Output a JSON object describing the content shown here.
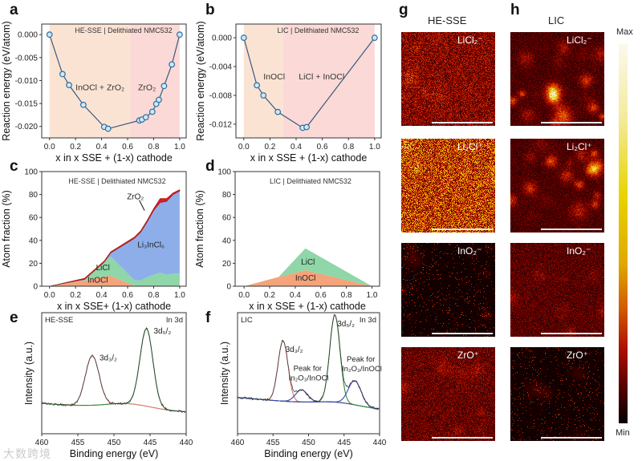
{
  "panel_letters": [
    "a",
    "b",
    "c",
    "d",
    "e",
    "f",
    "g",
    "h"
  ],
  "watermark": "大数跨境",
  "chart_data": [
    {
      "id": "a",
      "type": "line",
      "title": "HE-SSE | Delithiated NMC532",
      "xlabel": "x in x SSE + (1-x) cathode",
      "ylabel": "Reaction energy (eV/atom)",
      "xlim": [
        -0.06,
        1.05
      ],
      "ylim": [
        -0.0225,
        0.0023
      ],
      "xticks": [
        "0.0",
        "0.2",
        "0.4",
        "0.6",
        "0.8",
        "1.0"
      ],
      "xtick_values": [
        0,
        0.2,
        0.4,
        0.6,
        0.8,
        1.0
      ],
      "yticks": [
        "0.000",
        "-0.005",
        "-0.010",
        "-0.015",
        "-0.020"
      ],
      "ytick_values": [
        0,
        -0.005,
        -0.01,
        -0.015,
        -0.02
      ],
      "x": [
        0,
        0.1,
        0.15,
        0.26,
        0.42,
        0.45,
        0.69,
        0.71,
        0.74,
        0.79,
        0.82,
        0.84,
        0.88,
        0.94,
        1.0
      ],
      "y": [
        0,
        -0.0086,
        -0.011,
        -0.0153,
        -0.0201,
        -0.0205,
        -0.0187,
        -0.0185,
        -0.018,
        -0.0168,
        -0.0151,
        -0.0142,
        -0.0112,
        -0.0065,
        0
      ],
      "regions": [
        {
          "from": 0,
          "to": 0.62,
          "color": "#fbe3d3"
        },
        {
          "from": 0.62,
          "to": 1.0,
          "color": "#fbd9d6"
        }
      ],
      "annotations": [
        {
          "text": "InOCl + ZrO₂",
          "x": 0.2,
          "y": -0.0121
        },
        {
          "text": "ZrO₂",
          "x": 0.68,
          "y": -0.0121
        }
      ]
    },
    {
      "id": "b",
      "type": "line",
      "title": "LIC | Delithiated NMC532",
      "xlabel": "x in x SSE + (1-x) cathode",
      "ylabel": "Reaction energy (eV/atom)",
      "xlim": [
        -0.06,
        1.05
      ],
      "ylim": [
        -0.0139,
        0.0019
      ],
      "xticks": [
        "0.0",
        "0.2",
        "0.4",
        "0.6",
        "0.8",
        "1.0"
      ],
      "xtick_values": [
        0,
        0.2,
        0.4,
        0.6,
        0.8,
        1.0
      ],
      "yticks": [
        "0.000",
        "-0.004",
        "-0.008",
        "-0.012"
      ],
      "ytick_values": [
        0,
        -0.004,
        -0.008,
        -0.012
      ],
      "x": [
        0,
        0.1,
        0.15,
        0.26,
        0.45,
        0.48,
        1.0
      ],
      "y": [
        0,
        -0.0066,
        -0.008,
        -0.0103,
        -0.0125,
        -0.0124,
        0
      ],
      "regions": [
        {
          "from": 0,
          "to": 0.3,
          "color": "#fbe3d3"
        },
        {
          "from": 0.3,
          "to": 1.0,
          "color": "#fbd9d6"
        }
      ],
      "annotations": [
        {
          "text": "InOCl",
          "x": 0.15,
          "y": -0.0058
        },
        {
          "text": "LiCl + InOCl",
          "x": 0.42,
          "y": -0.0058
        }
      ]
    },
    {
      "id": "c",
      "type": "area",
      "title": "HE-SSE | Delithiated NMC532",
      "xlabel": "x in x SSE+ (1-x) cathode",
      "ylabel": "Atom fraction (%)",
      "xlim": [
        -0.06,
        1.05
      ],
      "ylim": [
        0,
        100
      ],
      "xticks": [
        "0.0",
        "0.2",
        "0.4",
        "0.6",
        "0.8",
        "1.0"
      ],
      "xtick_values": [
        0,
        0.2,
        0.4,
        0.6,
        0.8,
        1.0
      ],
      "yticks": [
        "0",
        "20",
        "40",
        "60",
        "80",
        "100"
      ],
      "ytick_values": [
        0,
        20,
        40,
        60,
        80,
        100
      ],
      "x": [
        0,
        0.27,
        0.42,
        0.47,
        0.65,
        0.7,
        0.75,
        0.8,
        0.85,
        0.9,
        0.95,
        1.0
      ],
      "series": [
        {
          "name": "InOCl",
          "color": "#f4a37a",
          "values": [
            0,
            5,
            8.5,
            9,
            0.5,
            0,
            0,
            0,
            0,
            0,
            0,
            0
          ]
        },
        {
          "name": "LiCl",
          "color": "#8fd6a8",
          "values": [
            0,
            1,
            12.5,
            17,
            5,
            5,
            8,
            10,
            12,
            10,
            11,
            11
          ]
        },
        {
          "name": "Li₃InCl₆",
          "color": "#8eaeea",
          "values": [
            0,
            0,
            0,
            3,
            36,
            42,
            48,
            56,
            61,
            64,
            69,
            72
          ]
        },
        {
          "name": "ZrO₂",
          "color": "#d81e1e",
          "values": [
            0,
            1,
            1,
            1,
            1.2,
            1.3,
            1.5,
            1.7,
            3.5,
            2.5,
            1.5,
            1.2
          ]
        }
      ],
      "labels": [
        {
          "text": "Li₃InCl₆",
          "x": 0.78,
          "y": 34
        },
        {
          "text": "LiCl",
          "x": 0.41,
          "y": 14
        },
        {
          "text": "InOCl",
          "x": 0.37,
          "y": 3
        },
        {
          "text": "ZrO₂",
          "x": 0.66,
          "y": 76
        }
      ]
    },
    {
      "id": "d",
      "type": "area",
      "title": "LIC | Delithiated NMC532",
      "xlabel": "x in x SSE + (1-x) cathode",
      "ylabel": "Atom fraction (%)",
      "xlim": [
        -0.07,
        1.06
      ],
      "ylim": [
        0,
        100
      ],
      "xticks": [
        "0.0",
        "0.2",
        "0.4",
        "0.6",
        "0.8",
        "1.0"
      ],
      "xtick_values": [
        0,
        0.2,
        0.4,
        0.6,
        0.8,
        1.0
      ],
      "yticks": [
        "0",
        "20",
        "40",
        "60",
        "80",
        "100"
      ],
      "ytick_values": [
        0,
        20,
        40,
        60,
        80,
        100
      ],
      "x": [
        0,
        0.27,
        0.48,
        1.0
      ],
      "series": [
        {
          "name": "InOCl",
          "color": "#f4a37a",
          "values": [
            0,
            8,
            14,
            0
          ]
        },
        {
          "name": "LiCl",
          "color": "#8fd6a8",
          "values": [
            0,
            0,
            19,
            0
          ]
        }
      ],
      "labels": [
        {
          "text": "LiCl",
          "x": 0.5,
          "y": 19
        },
        {
          "text": "InOCl",
          "x": 0.48,
          "y": 5
        }
      ]
    },
    {
      "id": "e",
      "type": "line",
      "sample": "HE-SSE",
      "region": "In 3d",
      "xlabel": "Binding energy (eV)",
      "ylabel": "Intensity (a.u.)",
      "xlim": [
        460,
        440
      ],
      "ylim": [
        0,
        1
      ],
      "xticks": [
        "460",
        "455",
        "450",
        "445",
        "440"
      ],
      "xtick_values": [
        460,
        455,
        450,
        445,
        440
      ],
      "background": {
        "start": 0.25,
        "end": 0.18,
        "bump_center": 448,
        "bump_height": 0.04
      },
      "peaks": [
        {
          "name": "3d₃/₂",
          "center": 453.0,
          "height": 0.41,
          "sigma": 0.95,
          "color": "#d07a72"
        },
        {
          "name": "3d₅/₂",
          "center": 445.5,
          "height": 0.64,
          "sigma": 0.9,
          "color": "#2f8a3c"
        }
      ],
      "background_color": "#e6b45c",
      "raw_color": "#333333"
    },
    {
      "id": "f",
      "type": "line",
      "sample": "LIC",
      "region": "In 3d",
      "xlabel": "Binding energy (eV)",
      "ylabel": "Intensity (a.u.)",
      "xlim": [
        460,
        440
      ],
      "ylim": [
        0,
        1
      ],
      "xticks": [
        "460",
        "455",
        "450",
        "445",
        "440"
      ],
      "xtick_values": [
        460,
        455,
        450,
        445,
        440
      ],
      "background": {
        "start": 0.3,
        "end": 0.2,
        "bump_center": 446,
        "bump_height": 0.03
      },
      "peaks": [
        {
          "name": "3d₃/₂",
          "center": 453.6,
          "height": 0.5,
          "sigma": 0.7,
          "color": "#d07a72"
        },
        {
          "name": "Peak for In₂O₃/InOCl",
          "center": 451.0,
          "height": 0.1,
          "sigma": 0.85,
          "color": "#3a47a8"
        },
        {
          "name": "3d₅/₂",
          "center": 446.3,
          "height": 0.72,
          "sigma": 0.72,
          "color": "#2f8a3c"
        },
        {
          "name": "Peak for In₂O₃/InOCl",
          "center": 443.5,
          "height": 0.2,
          "sigma": 0.9,
          "color": "#3a47a8"
        }
      ],
      "background_color": "#e6b45c",
      "raw_color": "#333333"
    },
    {
      "id": "g-h",
      "type": "heatmap",
      "columns": [
        {
          "letter": "g",
          "title": "HE-SSE"
        },
        {
          "letter": "h",
          "title": "LIC"
        }
      ],
      "ions": [
        "LiCl₂⁻",
        "Li₂Cl⁺",
        "InO₂⁻",
        "ZrO⁺"
      ],
      "relative_intensity": {
        "HE-SSE": [
          0.38,
          0.6,
          0.06,
          0.3
        ],
        "LIC": [
          0.22,
          0.22,
          0.26,
          0.05
        ]
      },
      "colorbar": {
        "max_label": "Max",
        "min_label": "Min"
      }
    }
  ]
}
